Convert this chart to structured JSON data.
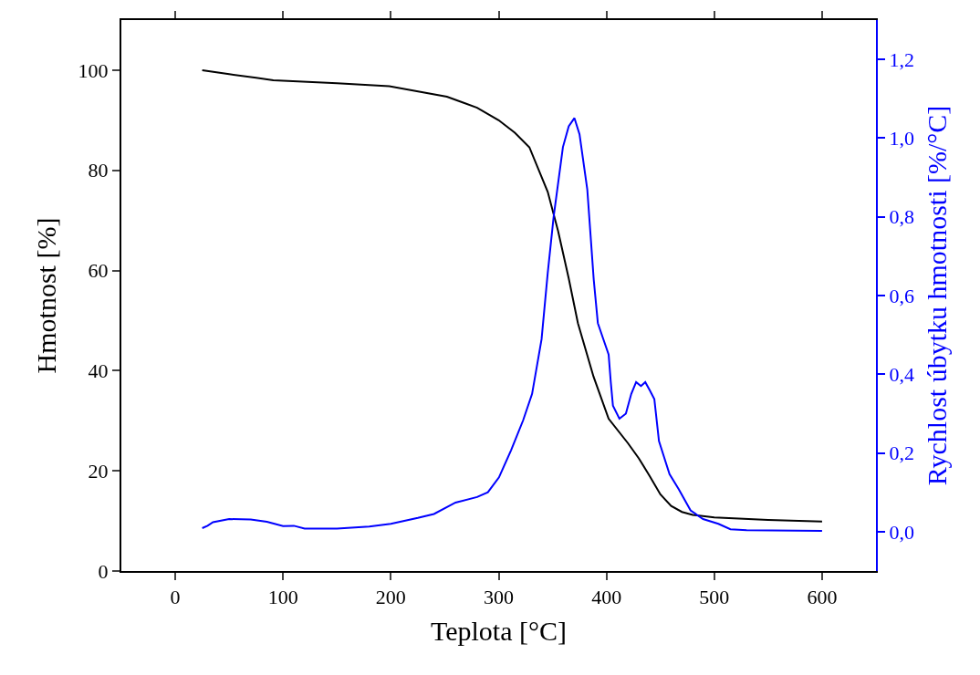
{
  "chart_data": {
    "type": "line",
    "xlabel": "Teplota [°C]",
    "ylabel": "Hmotnost [%]",
    "y2label": "Rychlost úbytku hmotnosti [%/°C]",
    "xlim": [
      -50,
      650
    ],
    "xticks": [
      0,
      100,
      200,
      300,
      400,
      500,
      600
    ],
    "ylim": [
      0,
      110
    ],
    "yticks": [
      0,
      20,
      40,
      60,
      80,
      100
    ],
    "y2lim": [
      -0.1,
      1.3
    ],
    "y2ticks": [
      {
        "value": 0,
        "label": "0,0"
      },
      {
        "value": 0.2,
        "label": "0,2"
      },
      {
        "value": 0.4,
        "label": "0,4"
      },
      {
        "value": 0.6,
        "label": "0,6"
      },
      {
        "value": 0.8,
        "label": "0,8"
      },
      {
        "value": 1.0,
        "label": "1,0"
      },
      {
        "value": 1.2,
        "label": "1,2"
      }
    ],
    "marker": "none",
    "line_style": "solid",
    "series": [
      {
        "color": "#000000",
        "x": [
          25,
          50,
          75,
          91,
          150,
          198.5,
          252,
          280,
          300,
          315,
          328.5,
          345.5,
          355,
          365,
          373.5,
          388,
          402,
          420,
          430,
          440,
          450,
          460,
          470,
          480,
          500,
          550,
          600
        ],
        "values": [
          100,
          99.2,
          98.5,
          98.0,
          97.4,
          96.8,
          94.7,
          92.5,
          90,
          87.5,
          84.6,
          75.7,
          68,
          58.4,
          49.5,
          38.8,
          30.4,
          25.5,
          22.5,
          19,
          15.3,
          13,
          11.8,
          11.2,
          10.7,
          10.2,
          9.9
        ]
      },
      {
        "color": "#0000ff",
        "axis": "y2",
        "x": [
          25,
          30,
          35,
          50,
          70,
          85,
          100,
          110,
          120,
          150,
          180,
          200,
          225,
          240,
          260,
          280,
          290,
          300.3,
          311.5,
          322.7,
          331,
          339.8,
          345.5,
          351,
          359.6,
          365,
          370.3,
          375,
          382.2,
          388.2,
          392,
          397,
          402,
          404,
          406,
          412,
          418,
          423,
          427.5,
          432,
          436,
          440,
          444.4,
          448.7,
          458.5,
          467,
          478,
          489.6,
          503.8,
          515,
          530,
          600
        ],
        "values": [
          0.009,
          0.015,
          0.024,
          0.032,
          0.031,
          0.025,
          0.014,
          0.015,
          0.008,
          0.008,
          0.013,
          0.02,
          0.035,
          0.045,
          0.074,
          0.088,
          0.1,
          0.138,
          0.207,
          0.283,
          0.35,
          0.489,
          0.657,
          0.8,
          0.977,
          1.03,
          1.051,
          1.01,
          0.87,
          0.64,
          0.53,
          0.49,
          0.45,
          0.38,
          0.32,
          0.287,
          0.3,
          0.35,
          0.38,
          0.37,
          0.38,
          0.36,
          0.337,
          0.23,
          0.146,
          0.108,
          0.054,
          0.032,
          0.02,
          0.006,
          0.004,
          0.002
        ]
      }
    ]
  }
}
